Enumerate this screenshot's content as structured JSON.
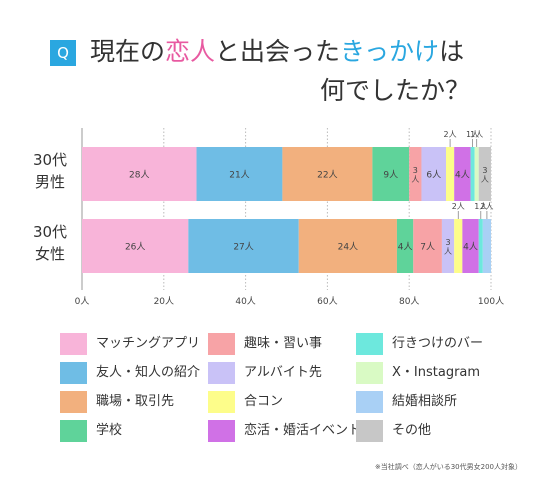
{
  "title": {
    "q": "Q",
    "line1_a": "現在の",
    "line1_b": "恋人",
    "line1_c": "と出会った",
    "line1_d": "きっかけ",
    "line1_e": "は",
    "line2": "何でしたか？"
  },
  "note": "※当社調べ（恋人がいる30代男女200人対象）",
  "colors": {
    "highlight_pink": "#e85aa1",
    "highlight_blue": "#2aa7e0"
  },
  "chart_data": {
    "type": "bar",
    "orientation": "horizontal",
    "stacked": true,
    "categories": [
      "30代\n男性",
      "30代\n女性"
    ],
    "xlim": [
      0,
      100
    ],
    "x_ticks": [
      "0人",
      "20人",
      "40人",
      "60人",
      "80人",
      "100人"
    ],
    "grid": true,
    "legend_position": "bottom",
    "series": [
      {
        "name": "マッチングアプリ",
        "color": "#f8b4d9",
        "values": [
          28,
          26
        ],
        "labels": [
          "28人",
          "26人"
        ]
      },
      {
        "name": "友人・知人の紹介",
        "color": "#6fbde5",
        "values": [
          21,
          27
        ],
        "labels": [
          "21人",
          "27人"
        ]
      },
      {
        "name": "職場・取引先",
        "color": "#f2b07e",
        "values": [
          22,
          24
        ],
        "labels": [
          "22人",
          "24人"
        ]
      },
      {
        "name": "学校",
        "color": "#5fd39a",
        "values": [
          9,
          4
        ],
        "labels": [
          "9人",
          "4人"
        ]
      },
      {
        "name": "趣味・習い事",
        "color": "#f7a3a6",
        "values": [
          3,
          7
        ],
        "labels": [
          "3人",
          "7人"
        ]
      },
      {
        "name": "アルバイト先",
        "color": "#c9c2f7",
        "values": [
          6,
          3
        ],
        "labels": [
          "6人",
          "3人"
        ]
      },
      {
        "name": "合コン",
        "color": "#fdfd8a",
        "values": [
          2,
          2
        ],
        "labels": [
          "2人",
          "2人"
        ]
      },
      {
        "name": "恋活・婚活イベント",
        "color": "#d071e6",
        "values": [
          4,
          4
        ],
        "labels": [
          "4人",
          "4人"
        ]
      },
      {
        "name": "行きつけのバー",
        "color": "#6de8dd",
        "values": [
          1,
          1
        ],
        "labels": [
          "1人",
          "1人"
        ]
      },
      {
        "name": "X・Instagram",
        "color": "#d9fac4",
        "values": [
          1,
          0
        ],
        "labels": [
          "1人",
          ""
        ]
      },
      {
        "name": "結婚相談所",
        "color": "#a9d0f5",
        "values": [
          0,
          2
        ],
        "labels": [
          "",
          "2人"
        ]
      },
      {
        "name": "その他",
        "color": "#c7c7c7",
        "values": [
          3,
          0
        ],
        "labels": [
          "3人",
          ""
        ]
      }
    ]
  },
  "legend_layout": [
    [
      0,
      4,
      8
    ],
    [
      1,
      5,
      9
    ],
    [
      2,
      6,
      10
    ],
    [
      3,
      7,
      11
    ]
  ]
}
